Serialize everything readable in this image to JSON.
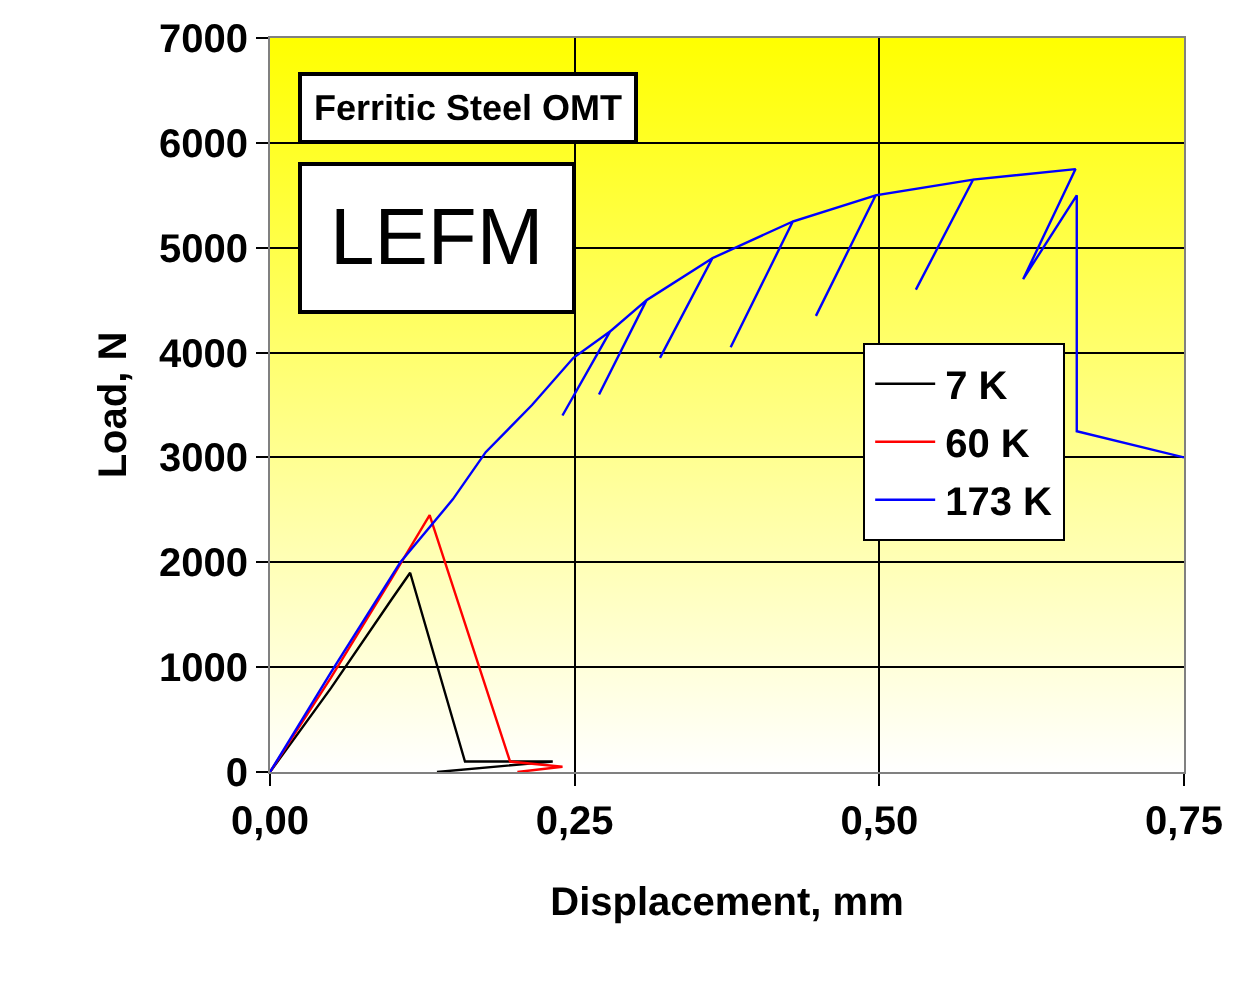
{
  "chart_data": {
    "type": "line",
    "xlabel": "Displacement, mm",
    "ylabel": "Load, N",
    "annotations": [
      "Ferritic Steel OMT",
      "LEFM"
    ],
    "xlim": [
      0,
      0.75
    ],
    "xticks": [
      {
        "value": 0,
        "label": "0,00"
      },
      {
        "value": 0.25,
        "label": "0,25"
      },
      {
        "value": 0.5,
        "label": "0,50"
      },
      {
        "value": 0.75,
        "label": "0,75"
      }
    ],
    "ylim": [
      0,
      7000
    ],
    "yticks": [
      0,
      1000,
      2000,
      3000,
      4000,
      5000,
      6000,
      7000
    ],
    "grid": true,
    "legend": "right",
    "marker": "none",
    "line_style": "solid",
    "series": [
      {
        "name": "7 K",
        "color": "#000000",
        "x": [
          0,
          0.05,
          0.1,
          0.115,
          0.16,
          0.232,
          0.137
        ],
        "values": [
          0,
          800,
          1650,
          1900,
          100,
          100,
          0
        ]
      },
      {
        "name": "60 K",
        "color": "#ff0000",
        "x": [
          0,
          0.05,
          0.1,
          0.131,
          0.197,
          0.24,
          0.203
        ],
        "values": [
          0,
          900,
          1850,
          2450,
          100,
          50,
          0
        ]
      },
      {
        "name": "173 K",
        "color": "#0000ff",
        "x": [
          0,
          0.05,
          0.107,
          0.15,
          0.177,
          0.215,
          0.249,
          0.279,
          0.24,
          0.279,
          0.309,
          0.27,
          0.309,
          0.363,
          0.32,
          0.363,
          0.429,
          0.378,
          0.429,
          0.497,
          0.448,
          0.497,
          0.577,
          0.53,
          0.577,
          0.661,
          0.618,
          0.662,
          0.662,
          0.75
        ],
        "values": [
          0,
          950,
          2000,
          2600,
          3050,
          3500,
          3950,
          4200,
          3400,
          4200,
          4500,
          3600,
          4500,
          4900,
          3950,
          4900,
          5250,
          4050,
          5250,
          5500,
          4350,
          5500,
          5650,
          4600,
          5650,
          5750,
          4700,
          5500,
          3250,
          3000
        ]
      }
    ]
  }
}
